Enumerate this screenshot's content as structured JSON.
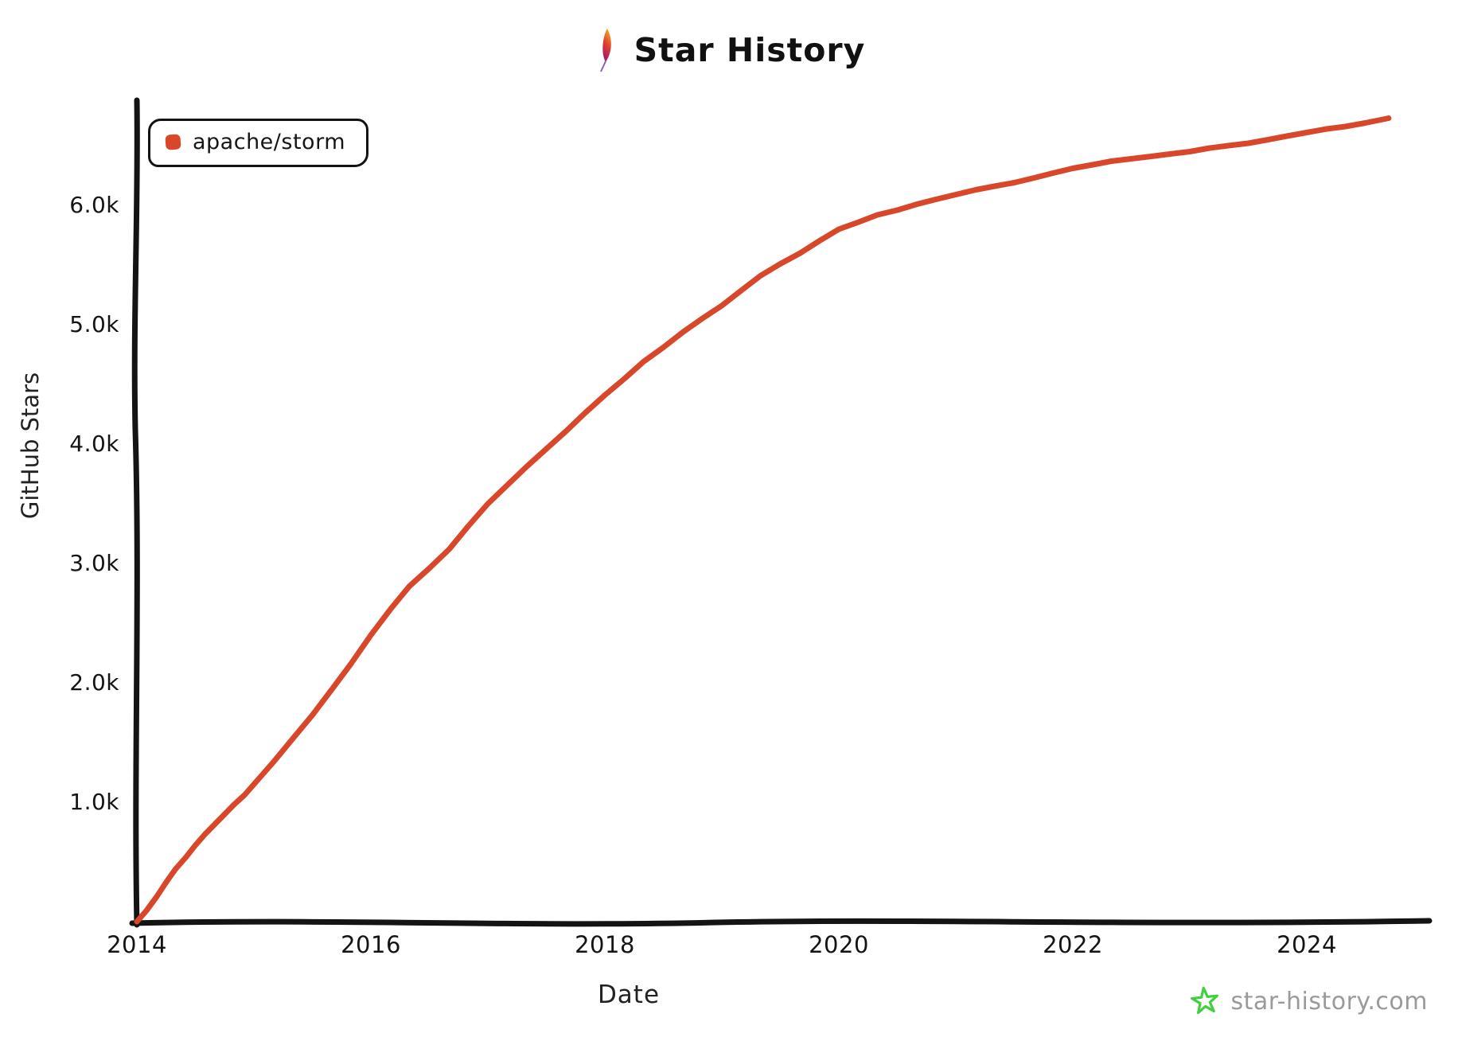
{
  "title": "Star History",
  "header_icon": "apache-feather-icon",
  "legend": {
    "label": "apache/storm",
    "marker_color": "#d9472a"
  },
  "axes": {
    "x_label": "Date",
    "y_label": "GitHub Stars"
  },
  "watermark": {
    "text": "star-history.com",
    "star_color": "#3ed03e",
    "text_color": "#9a9a9a"
  },
  "colors": {
    "line": "#d9472a",
    "axis": "#141414",
    "background": "#ffffff"
  },
  "chart_data": {
    "type": "line",
    "title": "Star History",
    "xlabel": "Date",
    "ylabel": "GitHub Stars",
    "legend_position": "top-left",
    "grid": false,
    "xlim": [
      2014,
      2025.05
    ],
    "ylim": [
      0,
      6890
    ],
    "x_ticks": [
      {
        "label": "2014",
        "value": 2014
      },
      {
        "label": "2016",
        "value": 2016
      },
      {
        "label": "2018",
        "value": 2018
      },
      {
        "label": "2020",
        "value": 2020
      },
      {
        "label": "2022",
        "value": 2022
      },
      {
        "label": "2024",
        "value": 2024
      }
    ],
    "y_ticks": [
      {
        "label": "1.0k",
        "value": 1000
      },
      {
        "label": "2.0k",
        "value": 2000
      },
      {
        "label": "3.0k",
        "value": 3000
      },
      {
        "label": "4.0k",
        "value": 4000
      },
      {
        "label": "5.0k",
        "value": 5000
      },
      {
        "label": "6.0k",
        "value": 6000
      }
    ],
    "series": [
      {
        "name": "apache/storm",
        "color": "#d9472a",
        "points": [
          [
            2014.0,
            0
          ],
          [
            2014.08,
            90
          ],
          [
            2014.17,
            210
          ],
          [
            2014.25,
            330
          ],
          [
            2014.33,
            440
          ],
          [
            2014.42,
            540
          ],
          [
            2014.5,
            640
          ],
          [
            2014.58,
            730
          ],
          [
            2014.67,
            820
          ],
          [
            2014.75,
            900
          ],
          [
            2014.83,
            980
          ],
          [
            2014.92,
            1060
          ],
          [
            2015.0,
            1150
          ],
          [
            2015.17,
            1340
          ],
          [
            2015.33,
            1530
          ],
          [
            2015.5,
            1730
          ],
          [
            2015.67,
            1950
          ],
          [
            2015.83,
            2160
          ],
          [
            2016.0,
            2400
          ],
          [
            2016.17,
            2620
          ],
          [
            2016.33,
            2810
          ],
          [
            2016.5,
            2960
          ],
          [
            2016.67,
            3120
          ],
          [
            2016.83,
            3310
          ],
          [
            2017.0,
            3500
          ],
          [
            2017.17,
            3660
          ],
          [
            2017.33,
            3810
          ],
          [
            2017.5,
            3960
          ],
          [
            2017.67,
            4110
          ],
          [
            2017.83,
            4260
          ],
          [
            2018.0,
            4410
          ],
          [
            2018.17,
            4550
          ],
          [
            2018.33,
            4690
          ],
          [
            2018.5,
            4810
          ],
          [
            2018.67,
            4940
          ],
          [
            2018.83,
            5050
          ],
          [
            2019.0,
            5160
          ],
          [
            2019.17,
            5290
          ],
          [
            2019.33,
            5410
          ],
          [
            2019.5,
            5510
          ],
          [
            2019.67,
            5600
          ],
          [
            2019.83,
            5700
          ],
          [
            2020.0,
            5800
          ],
          [
            2020.17,
            5860
          ],
          [
            2020.33,
            5920
          ],
          [
            2020.5,
            5960
          ],
          [
            2020.67,
            6010
          ],
          [
            2020.83,
            6050
          ],
          [
            2021.0,
            6090
          ],
          [
            2021.17,
            6130
          ],
          [
            2021.33,
            6160
          ],
          [
            2021.5,
            6190
          ],
          [
            2021.67,
            6230
          ],
          [
            2021.83,
            6270
          ],
          [
            2022.0,
            6310
          ],
          [
            2022.17,
            6340
          ],
          [
            2022.33,
            6370
          ],
          [
            2022.5,
            6390
          ],
          [
            2022.67,
            6410
          ],
          [
            2022.83,
            6430
          ],
          [
            2023.0,
            6450
          ],
          [
            2023.17,
            6480
          ],
          [
            2023.33,
            6500
          ],
          [
            2023.5,
            6520
          ],
          [
            2023.67,
            6550
          ],
          [
            2023.83,
            6580
          ],
          [
            2024.0,
            6610
          ],
          [
            2024.17,
            6640
          ],
          [
            2024.33,
            6660
          ],
          [
            2024.5,
            6690
          ],
          [
            2024.6,
            6710
          ],
          [
            2024.7,
            6730
          ]
        ]
      }
    ]
  }
}
